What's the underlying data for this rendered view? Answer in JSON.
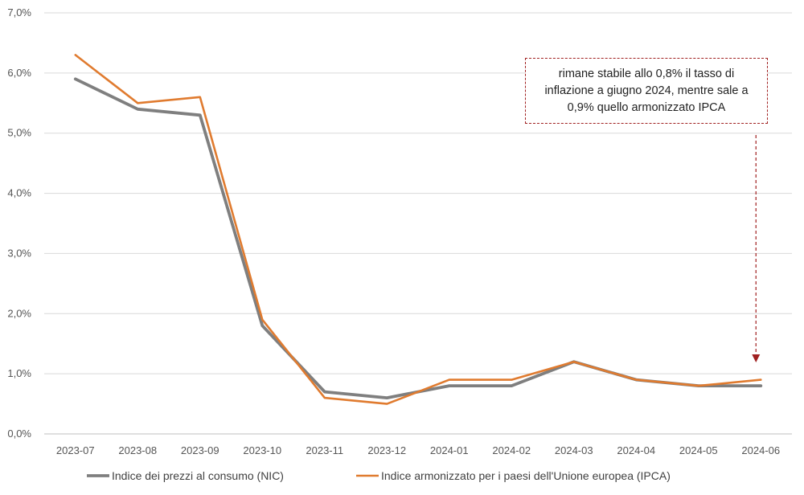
{
  "chart_data": {
    "type": "line",
    "categories": [
      "2023-07",
      "2023-08",
      "2023-09",
      "2023-10",
      "2023-11",
      "2023-12",
      "2024-01",
      "2024-02",
      "2024-03",
      "2024-04",
      "2024-05",
      "2024-06"
    ],
    "series": [
      {
        "name": "Indice  dei prezzi al consumo (NIC)",
        "color": "#7f7f7f",
        "values": [
          5.9,
          5.4,
          5.3,
          1.8,
          0.7,
          0.6,
          0.8,
          0.8,
          1.2,
          0.9,
          0.8,
          0.8
        ]
      },
      {
        "name": "Indice  armonizzato per i paesi dell'Unione europea (IPCA)",
        "color": "#e07b2f",
        "values": [
          6.3,
          5.5,
          5.6,
          1.9,
          0.6,
          0.5,
          0.9,
          0.9,
          1.2,
          0.9,
          0.8,
          0.9
        ]
      }
    ],
    "y_ticks": [
      "0,0%",
      "1,0%",
      "2,0%",
      "3,0%",
      "4,0%",
      "5,0%",
      "6,0%",
      "7,0%"
    ],
    "ylim": [
      0,
      7
    ],
    "grid": true,
    "legend_position": "bottom",
    "annotation": {
      "text": "rimane stabile allo 0,8% il tasso di inflazione a giugno 2024, mentre sale a 0,9% quello armonizzato IPCA",
      "color": "#a02020",
      "points_to_category": "2024-06"
    }
  }
}
